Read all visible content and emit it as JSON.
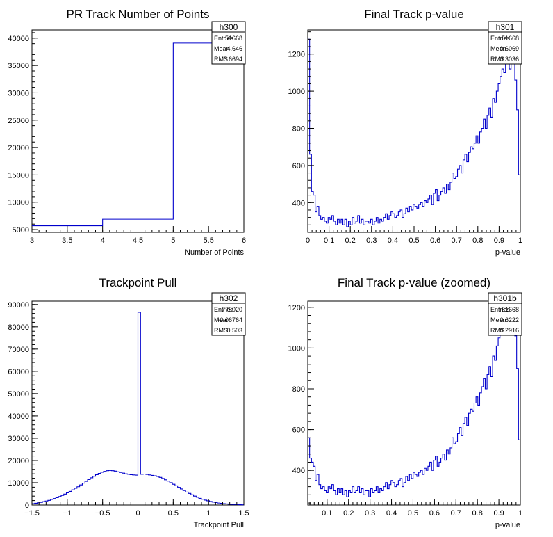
{
  "chart_data": [
    {
      "id": "h300",
      "type": "histogram",
      "title": "PR Track Number of Points",
      "xlabel": "Number of Points",
      "ylabel": "",
      "xlim": [
        3,
        6
      ],
      "ylim": [
        4500,
        41500
      ],
      "xticks_major": [
        3,
        3.5,
        4,
        4.5,
        5,
        5.5,
        6
      ],
      "xtick_labels": [
        "3",
        "3.5",
        "4",
        "4.5",
        "5",
        "5.5",
        "6"
      ],
      "yticks_major": [
        5000,
        10000,
        15000,
        20000,
        25000,
        30000,
        35000,
        40000
      ],
      "ytick_labels": [
        "5000",
        "10000",
        "15000",
        "20000",
        "25000",
        "30000",
        "35000",
        "40000"
      ],
      "x_edges": [
        3,
        4,
        5,
        6
      ],
      "values": [
        5700,
        6900,
        39100
      ],
      "stats": {
        "name": "h300",
        "rows": [
          {
            "label": "Entries",
            "value": "51668"
          },
          {
            "label": "Mean",
            "value": "4.646"
          },
          {
            "label": "RMS",
            "value": "0.6694"
          }
        ]
      },
      "line_color": "#0000cc",
      "grid": false
    },
    {
      "id": "h301",
      "type": "histogram",
      "title": "Final Track p-value",
      "xlabel": "p-value",
      "ylabel": "",
      "xlim": [
        0,
        1
      ],
      "ylim": [
        240,
        1330
      ],
      "xticks_major": [
        0,
        0.1,
        0.2,
        0.3,
        0.4,
        0.5,
        0.6,
        0.7,
        0.8,
        0.9,
        1
      ],
      "xtick_labels": [
        "0",
        "0.1",
        "0.2",
        "0.3",
        "0.4",
        "0.5",
        "0.6",
        "0.7",
        "0.8",
        "0.9",
        "1"
      ],
      "yticks_major": [
        400,
        600,
        800,
        1000,
        1200
      ],
      "ytick_labels": [
        "400",
        "600",
        "800",
        "1000",
        "1200"
      ],
      "x_edges_range": [
        0,
        1
      ],
      "values": [
        1280,
        660,
        460,
        440,
        350,
        380,
        330,
        310,
        320,
        300,
        290,
        320,
        310,
        330,
        300,
        280,
        310,
        290,
        310,
        280,
        310,
        270,
        300,
        280,
        320,
        290,
        300,
        330,
        290,
        310,
        280,
        300,
        300,
        290,
        310,
        280,
        300,
        320,
        290,
        310,
        300,
        320,
        340,
        310,
        330,
        350,
        340,
        320,
        330,
        350,
        360,
        320,
        340,
        370,
        350,
        380,
        360,
        390,
        380,
        370,
        390,
        400,
        380,
        410,
        400,
        420,
        440,
        390,
        450,
        470,
        410,
        440,
        460,
        480,
        450,
        500,
        470,
        510,
        560,
        530,
        540,
        580,
        600,
        560,
        630,
        660,
        620,
        670,
        700,
        690,
        720,
        760,
        720,
        780,
        800,
        850,
        800,
        870,
        910,
        860,
        960,
        940,
        1000,
        1040,
        1080,
        1120,
        1100,
        1150,
        1170,
        1120,
        1200,
        1150,
        1060,
        900,
        550
      ],
      "stats": {
        "name": "h301",
        "rows": [
          {
            "label": "Entries",
            "value": "51668"
          },
          {
            "label": "Mean",
            "value": "0.6069"
          },
          {
            "label": "RMS",
            "value": "0.3036"
          }
        ]
      },
      "line_color": "#0000cc",
      "grid": false
    },
    {
      "id": "h302",
      "type": "histogram",
      "title": "Trackpoint Pull",
      "xlabel": "Trackpoint Pull",
      "ylabel": "",
      "xlim": [
        -1.5,
        1.5
      ],
      "ylim": [
        0,
        91500
      ],
      "xticks_major": [
        -1.5,
        -1,
        -0.5,
        0,
        0.5,
        1,
        1.5
      ],
      "xtick_labels": [
        "−1.5",
        "−1",
        "−0.5",
        "0",
        "0.5",
        "1",
        "1.5"
      ],
      "yticks_major": [
        0,
        10000,
        20000,
        30000,
        40000,
        50000,
        60000,
        70000,
        80000,
        90000
      ],
      "ytick_labels": [
        "0",
        "10000",
        "20000",
        "30000",
        "40000",
        "50000",
        "60000",
        "70000",
        "80000",
        "90000"
      ],
      "x_edges_range": [
        -1.5,
        1.5
      ],
      "values": [
        600,
        800,
        1000,
        1200,
        1500,
        1800,
        2100,
        2500,
        2900,
        3300,
        3800,
        4300,
        4900,
        5500,
        6100,
        6800,
        7500,
        8200,
        9000,
        9800,
        10600,
        11400,
        12200,
        12900,
        13600,
        14200,
        14700,
        15100,
        15400,
        15500,
        15400,
        15200,
        14900,
        14600,
        14300,
        14000,
        13800,
        13600,
        13500,
        13400,
        86500,
        13800,
        13900,
        13700,
        13500,
        13300,
        13100,
        12800,
        12400,
        11900,
        11300,
        10700,
        10000,
        9300,
        8600,
        7900,
        7200,
        6500,
        5800,
        5200,
        4600,
        4000,
        3500,
        3000,
        2600,
        2200,
        1900,
        1600,
        1300,
        1100,
        900,
        750,
        600,
        480,
        380,
        300,
        230,
        180,
        140,
        100
      ],
      "stats": {
        "name": "h302",
        "rows": [
          {
            "label": "Entries",
            "value": "775020"
          },
          {
            "label": "Mean",
            "value": "−0.06764"
          },
          {
            "label": "RMS",
            "value": "0.503"
          }
        ]
      },
      "line_color": "#0000cc",
      "grid": false
    },
    {
      "id": "h301b",
      "type": "histogram",
      "title": "Final Track p-value (zoomed)",
      "xlabel": "p-value",
      "ylabel": "",
      "xlim": [
        0.01,
        1
      ],
      "ylim": [
        230,
        1230
      ],
      "xticks_major": [
        0.1,
        0.2,
        0.3,
        0.4,
        0.5,
        0.6,
        0.7,
        0.8,
        0.9,
        1
      ],
      "xtick_labels": [
        "0.1",
        "0.2",
        "0.3",
        "0.4",
        "0.5",
        "0.6",
        "0.7",
        "0.8",
        "0.9",
        "1"
      ],
      "yticks_major": [
        400,
        600,
        800,
        1000,
        1200
      ],
      "ytick_labels": [
        "400",
        "600",
        "800",
        "1000",
        "1200"
      ],
      "x_edges_range": [
        0.01,
        1
      ],
      "values": [
        560,
        460,
        440,
        420,
        350,
        380,
        330,
        310,
        320,
        300,
        290,
        320,
        310,
        330,
        300,
        280,
        310,
        290,
        310,
        280,
        300,
        270,
        300,
        290,
        320,
        290,
        300,
        320,
        290,
        310,
        280,
        300,
        300,
        270,
        310,
        290,
        300,
        320,
        290,
        310,
        300,
        320,
        340,
        310,
        330,
        350,
        340,
        320,
        330,
        350,
        360,
        320,
        340,
        370,
        350,
        380,
        360,
        390,
        380,
        370,
        390,
        400,
        380,
        410,
        400,
        420,
        440,
        400,
        450,
        470,
        420,
        440,
        460,
        480,
        450,
        500,
        480,
        510,
        560,
        530,
        540,
        580,
        610,
        570,
        630,
        660,
        620,
        680,
        700,
        690,
        730,
        760,
        720,
        780,
        810,
        850,
        800,
        870,
        910,
        860,
        960,
        940,
        1010,
        1050,
        1090,
        1120,
        1100,
        1150,
        1170,
        1120,
        1200,
        1150,
        1060,
        900,
        550
      ],
      "stats": {
        "name": "h301b",
        "rows": [
          {
            "label": "Entries",
            "value": "51668"
          },
          {
            "label": "Mean",
            "value": "0.6222"
          },
          {
            "label": "RMS",
            "value": "0.2916"
          }
        ]
      },
      "line_color": "#0000cc",
      "grid": false
    }
  ]
}
